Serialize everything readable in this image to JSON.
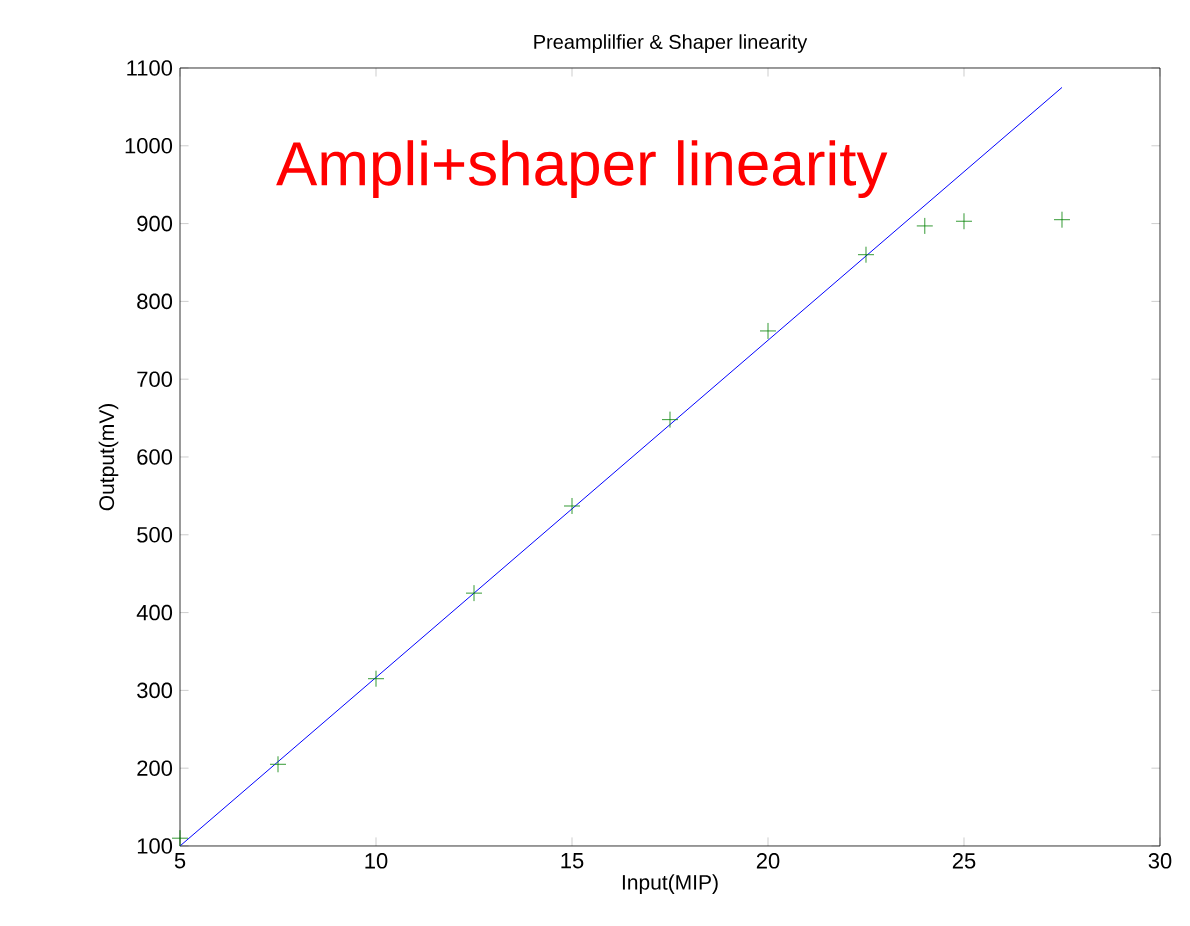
{
  "chart_data": {
    "type": "scatter",
    "title": "Preamplilfier & Shaper linearity",
    "xlabel": "Input(MIP)",
    "ylabel": "Output(mV)",
    "annotations": [
      "Ampli+shaper linearity"
    ],
    "series": [
      {
        "type": "scatter",
        "color": "#008000",
        "marker": "cross",
        "x": [
          5,
          7.5,
          10,
          12.5,
          15,
          17.5,
          20,
          22.5,
          24,
          25,
          27.5
        ],
        "values": [
          110,
          205,
          315,
          425,
          537,
          648,
          762,
          860,
          897,
          903,
          905
        ]
      },
      {
        "type": "line",
        "color": "#0000ff",
        "line_style": "solid",
        "x": [
          5,
          27.5
        ],
        "values": [
          100,
          1075
        ]
      }
    ],
    "xlim": [
      5,
      30
    ],
    "ylim": [
      100,
      1100
    ],
    "xticks": [
      5,
      10,
      15,
      20,
      25,
      30
    ],
    "yticks": [
      100,
      200,
      300,
      400,
      500,
      600,
      700,
      800,
      900,
      1000,
      1100
    ],
    "grid": false
  }
}
